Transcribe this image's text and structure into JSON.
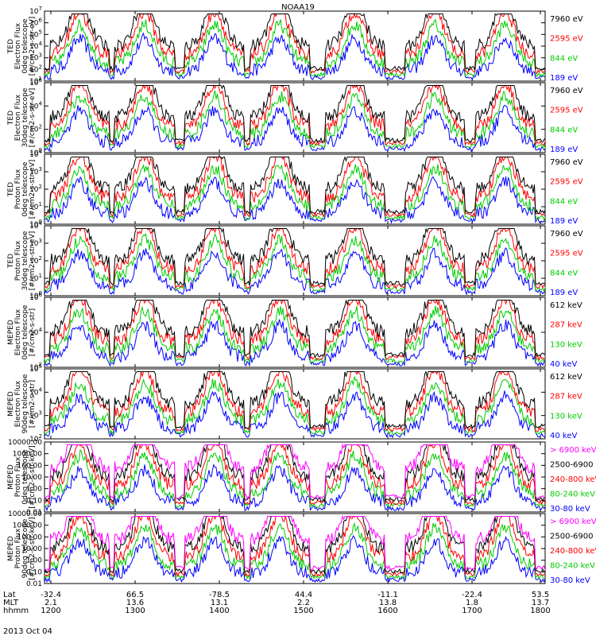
{
  "title": "NOAA19",
  "date_label": "2013 Oct 04",
  "chart_data": {
    "type": "line",
    "title": "NOAA19",
    "x_rows": [
      {
        "name": "Lat",
        "values": [
          "-32.4",
          "66.5",
          "-78.5",
          "44.4",
          "-11.1",
          "-22.4",
          "53.5"
        ]
      },
      {
        "name": "MLT",
        "values": [
          "2.1",
          "13.6",
          "13.1",
          "2.2",
          "13.8",
          "1.8",
          "13.7"
        ]
      },
      {
        "name": "hhmm",
        "values": [
          "1200",
          "1300",
          "1400",
          "1500",
          "1600",
          "1700",
          "1800"
        ]
      }
    ],
    "panels": [
      {
        "ylabel": [
          "TED",
          "Electron Flux",
          "0deg telescope",
          "[#/cm2-s-str-eV]"
        ],
        "yticks": [
          "10^1",
          "10^2",
          "10^3",
          "10^4",
          "10^5",
          "10^6",
          "10^7"
        ],
        "ylim": [
          1,
          7
        ],
        "channels": [
          {
            "name": "7960 eV",
            "color": "#000000"
          },
          {
            "name": "2595 eV",
            "color": "#ff0000"
          },
          {
            "name": "844 eV",
            "color": "#00cc00"
          },
          {
            "name": "189 eV",
            "color": "#0000ff"
          }
        ]
      },
      {
        "ylabel": [
          "TED",
          "Electron Flux",
          "30deg telescope",
          "[#/cm2-s-str-eV]"
        ],
        "yticks": [
          "10^0",
          "10^2",
          "10^4",
          "10^6"
        ],
        "ylim": [
          0,
          6
        ],
        "channels": [
          {
            "name": "7960 eV",
            "color": "#000000"
          },
          {
            "name": "2595 eV",
            "color": "#ff0000"
          },
          {
            "name": "844 eV",
            "color": "#00cc00"
          },
          {
            "name": "189 eV",
            "color": "#0000ff"
          }
        ]
      },
      {
        "ylabel": [
          "TED",
          "Proton Flux",
          "0deg telescope",
          "[#/cm2-s-str-eV]"
        ],
        "yticks": [
          "10^0",
          "10^1",
          "10^2",
          "10^3",
          "10^4"
        ],
        "ylim": [
          0,
          4
        ],
        "channels": [
          {
            "name": "7960 eV",
            "color": "#000000"
          },
          {
            "name": "2595 eV",
            "color": "#ff0000"
          },
          {
            "name": "844 eV",
            "color": "#00cc00"
          },
          {
            "name": "189 eV",
            "color": "#0000ff"
          }
        ]
      },
      {
        "ylabel": [
          "TED",
          "Proton Flux",
          "30deg telescope",
          "[#/cm2-s-str-eV]"
        ],
        "yticks": [
          "10^0",
          "10^1",
          "10^2",
          "10^3",
          "10^4"
        ],
        "ylim": [
          0,
          4
        ],
        "channels": [
          {
            "name": "7960 eV",
            "color": "#000000"
          },
          {
            "name": "2595 eV",
            "color": "#ff0000"
          },
          {
            "name": "844 eV",
            "color": "#00cc00"
          },
          {
            "name": "189 eV",
            "color": "#0000ff"
          }
        ]
      },
      {
        "ylabel": [
          "MEPED",
          "Electron Flux",
          "0deg telescope",
          "[#/cm2-s-str]"
        ],
        "yticks": [
          "10^2",
          "10^4",
          "10^6"
        ],
        "ylim": [
          2,
          6.5
        ],
        "channels": [
          {
            "name": "612 keV",
            "color": "#000000"
          },
          {
            "name": "287 keV",
            "color": "#ff0000"
          },
          {
            "name": "130 keV",
            "color": "#00cc00"
          },
          {
            "name": "40 keV",
            "color": "#0000ff"
          }
        ]
      },
      {
        "ylabel": [
          "MEPED",
          "Electron Flux",
          "90deg telescope",
          "[#/cm2-s-str]"
        ],
        "yticks": [
          "10^2",
          "10^3",
          "10^4",
          "10^5"
        ],
        "ylim": [
          2,
          5.2
        ],
        "channels": [
          {
            "name": "612 keV",
            "color": "#000000"
          },
          {
            "name": "287 keV",
            "color": "#ff0000"
          },
          {
            "name": "130 keV",
            "color": "#00cc00"
          },
          {
            "name": "40 keV",
            "color": "#0000ff"
          }
        ]
      },
      {
        "ylabel": [
          "MEPED",
          "Proton Flux",
          "0deg telescope",
          "[#/cm2-s-str-keV]"
        ],
        "yticks": [
          "0.01",
          "0.10",
          "1.00",
          "10.00",
          "100.00",
          "1000.00",
          "10000.00"
        ],
        "ylim": [
          -2,
          4
        ],
        "channels": [
          {
            "name": "> 6900 keV",
            "color": "#ff00ff"
          },
          {
            "name": "2500-6900",
            "color": "#000000"
          },
          {
            "name": "240-800 keV",
            "color": "#ff0000"
          },
          {
            "name": "80-240 keV",
            "color": "#00cc00"
          },
          {
            "name": "30-80 keV",
            "color": "#0000ff"
          }
        ]
      },
      {
        "ylabel": [
          "MEPED",
          "Proton Flux",
          "90deg telescope",
          "[#/cm2-s-str-keV]"
        ],
        "yticks": [
          "0.01",
          "0.10",
          "1.00",
          "10.00",
          "100.00",
          "1000.00",
          "10000.00"
        ],
        "ylim": [
          -2,
          4
        ],
        "channels": [
          {
            "name": "> 6900 keV",
            "color": "#ff00ff"
          },
          {
            "name": "2500-6900",
            "color": "#000000"
          },
          {
            "name": "240-800 keV",
            "color": "#ff0000"
          },
          {
            "name": "80-240 keV",
            "color": "#00cc00"
          },
          {
            "name": "30-80 keV",
            "color": "#0000ff"
          }
        ]
      }
    ]
  }
}
